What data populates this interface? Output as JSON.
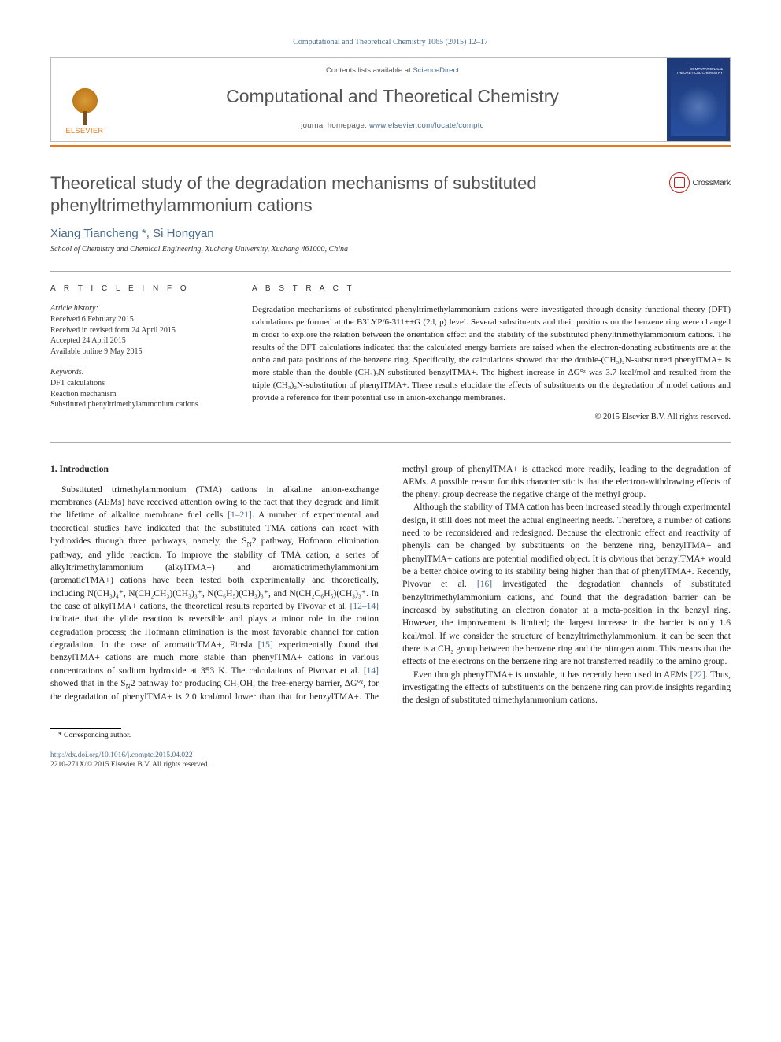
{
  "journal_ref": "Computational and Theoretical Chemistry 1065 (2015) 12–17",
  "header": {
    "contents_prefix": "Contents lists available at ",
    "contents_link": "ScienceDirect",
    "journal_name": "Computational and Theoretical Chemistry",
    "homepage_prefix": "journal homepage: ",
    "homepage_link": "www.elsevier.com/locate/comptc",
    "publisher": "ELSEVIER",
    "cover_label": "COMPUTATIONAL & THEORETICAL CHEMISTRY"
  },
  "colors": {
    "accent_orange": "#e67817",
    "link_blue": "#4a6b8a",
    "cover_blue": "#1e3a7a",
    "text_gray": "#525252",
    "rule_gray": "#aaaaaa"
  },
  "article": {
    "title": "Theoretical study of the degradation mechanisms of substituted phenyltrimethylammonium cations",
    "crossmark": "CrossMark",
    "authors": "Xiang Tiancheng *, Si Hongyan",
    "affiliation": "School of Chemistry and Chemical Engineering, Xuchang University, Xuchang 461000, China"
  },
  "info": {
    "heading": "A R T I C L E   I N F O",
    "history_head": "Article history:",
    "history": [
      "Received 6 February 2015",
      "Received in revised form 24 April 2015",
      "Accepted 24 April 2015",
      "Available online 9 May 2015"
    ],
    "keywords_head": "Keywords:",
    "keywords": [
      "DFT calculations",
      "Reaction mechanism",
      "Substituted phenyltrimethylammonium cations"
    ]
  },
  "abstract": {
    "heading": "A B S T R A C T",
    "text": "Degradation mechanisms of substituted phenyltrimethylammonium cations were investigated through density functional theory (DFT) calculations performed at the B3LYP/6-311++G (2d, p) level. Several substituents and their positions on the benzene ring were changed in order to explore the relation between the orientation effect and the stability of the substituted phenyltrimethylammonium cations. The results of the DFT calculations indicated that the calculated energy barriers are raised when the electron-donating substituents are at the ortho and para positions of the benzene ring. Specifically, the calculations showed that the double-(CH₃)₂N-substituted phenylTMA+ is more stable than the double-(CH₃)₂N-substituted benzylTMA+. The highest increase in ΔG°ᶻ was 3.7 kcal/mol and resulted from the triple (CH₃)₂N-substitution of phenylTMA+. These results elucidate the effects of substituents on the degradation of model cations and provide a reference for their potential use in anion-exchange membranes.",
    "copyright": "© 2015 Elsevier B.V. All rights reserved."
  },
  "body": {
    "section_head": "1. Introduction",
    "p1a": "Substituted trimethylammonium (TMA) cations in alkaline anion-exchange membranes (AEMs) have received attention owing to the fact that they degrade and limit the lifetime of alkaline membrane fuel cells ",
    "p1_ref1": "[1–21]",
    "p1b": ". A number of experimental and theoretical studies have indicated that the substituted TMA cations can react with hydroxides through three pathways, namely, the S",
    "p1_sn2": "N",
    "p1c": "2 pathway, Hofmann elimination pathway, and ylide reaction. To improve the stability of TMA cation, a series of alkyltrimethylammonium (alkylTMA+) and aromatictrimethylammonium (aromaticTMA+) cations have been tested both experimentally and theoretically, including N(CH₃)₄⁺, N(CH₂CH₃)(CH₃)₃⁺, N(C₆H₅)(CH₃)₃⁺, and N(CH₂C₆H₅)(CH₃)₃⁺. In the case of alkylTMA+ cations, the theoretical results reported by Pivovar et al. ",
    "p1_ref2": "[12–14]",
    "p1d": " indicate that the ylide reaction is reversible and plays a minor role in the cation degradation process; the Hofmann elimination is the most favorable channel for cation degradation. In the case of aromaticTMA+, Einsla ",
    "p1_ref3": "[15]",
    "p1e": " experimentally found that benzylTMA+ cations are much more stable than phenylTMA+ cations in various concentrations of sodium hydroxide at 353 K. The calculations of Pivovar et al. ",
    "p1_ref4": "[14]",
    "p1f": " showed that in the S",
    "p1g": "2 pathway for producing CH₃OH, the free-energy barrier, ΔG°ᶻ, for the degradation of phenylTMA+ is 2.0 kcal/mol lower than that for ",
    "p1h": "benzylTMA+. The methyl group of phenylTMA+ is attacked more readily, leading to the degradation of AEMs. A possible reason for this characteristic is that the electron-withdrawing effects of the phenyl group decrease the negative charge of the methyl group.",
    "p2a": "Although the stability of TMA cation has been increased steadily through experimental design, it still does not meet the actual engineering needs. Therefore, a number of cations need to be reconsidered and redesigned. Because the electronic effect and reactivity of phenyls can be changed by substituents on the benzene ring, benzylTMA+ and phenylTMA+ cations are potential modified object. It is obvious that benzylTMA+ would be a better choice owing to its stability being higher than that of phenylTMA+. Recently, Pivovar et al. ",
    "p2_ref1": "[16]",
    "p2b": " investigated the degradation channels of substituted benzyltrimethylammonium cations, and found that the degradation barrier can be increased by substituting an electron donator at a meta-position in the benzyl ring. However, the improvement is limited; the largest increase in the barrier is only 1.6 kcal/mol. If we consider the structure of benzyltrimethylammonium, it can be seen that there is a CH₂ group between the benzene ring and the nitrogen atom. This means that the effects of the electrons on the benzene ring are not transferred readily to the amino group.",
    "p3a": "Even though phenylTMA+ is unstable, it has recently been used in AEMs ",
    "p3_ref1": "[22]",
    "p3b": ". Thus, investigating the effects of substituents on the benzene ring can provide insights regarding the design of substituted trimethylammonium cations."
  },
  "footnote": "* Corresponding author.",
  "footer": {
    "doi": "http://dx.doi.org/10.1016/j.comptc.2015.04.022",
    "issn": "2210-271X/© 2015 Elsevier B.V. All rights reserved."
  }
}
